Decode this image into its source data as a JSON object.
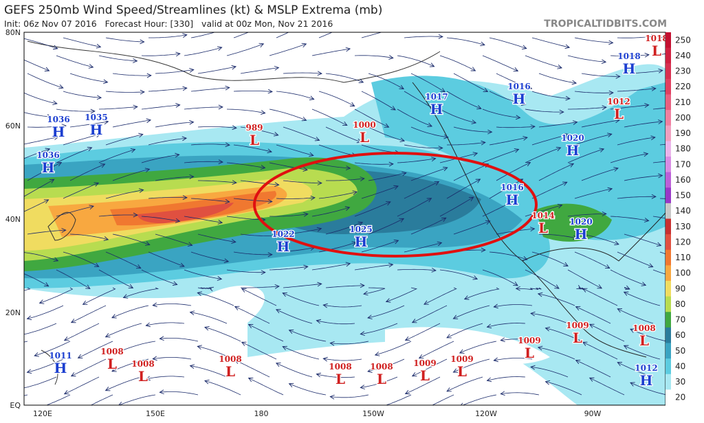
{
  "header": {
    "title": "GEFS 250mb Wind Speed/Streamlines (kt) & MSLP Extrema (mb)",
    "subtitle": "Init: 06z Nov 07 2016   Forecast Hour: [330]   valid at 00z Mon, Nov 21 2016",
    "source": "TROPICALTIDBITS.COM"
  },
  "lat_labels": [
    "80N",
    "60N",
    "40N",
    "20N",
    "EQ"
  ],
  "lon_labels": [
    "120E",
    "150E",
    "180",
    "150W",
    "120W",
    "90W"
  ],
  "pressure_centers": [
    {
      "type": "H",
      "value": "1036"
    },
    {
      "type": "H",
      "value": "1035"
    },
    {
      "type": "H",
      "value": "1036"
    },
    {
      "type": "L",
      "value": "989"
    },
    {
      "type": "L",
      "value": "1000"
    },
    {
      "type": "H",
      "value": "1017"
    },
    {
      "type": "H",
      "value": "1016"
    },
    {
      "type": "H",
      "value": "1018"
    },
    {
      "type": "L",
      "value": "1018"
    },
    {
      "type": "L",
      "value": "1012"
    },
    {
      "type": "H",
      "value": "1020"
    },
    {
      "type": "H",
      "value": "1016"
    },
    {
      "type": "L",
      "value": "1014"
    },
    {
      "type": "H",
      "value": "1020"
    },
    {
      "type": "H",
      "value": "1022"
    },
    {
      "type": "H",
      "value": "1025"
    },
    {
      "type": "H",
      "value": "1011"
    },
    {
      "type": "L",
      "value": "1008"
    },
    {
      "type": "L",
      "value": "1008"
    },
    {
      "type": "L",
      "value": "1008"
    },
    {
      "type": "L",
      "value": "1008"
    },
    {
      "type": "L",
      "value": "1008"
    },
    {
      "type": "L",
      "value": "1009"
    },
    {
      "type": "L",
      "value": "1009"
    },
    {
      "type": "L",
      "value": "1009"
    },
    {
      "type": "L",
      "value": "1009"
    },
    {
      "type": "L",
      "value": "1008"
    },
    {
      "type": "H",
      "value": "1012"
    }
  ],
  "colorbar": [
    {
      "label": "250",
      "color": "#c41030"
    },
    {
      "label": "240",
      "color": "#d02040"
    },
    {
      "label": "230",
      "color": "#d83050"
    },
    {
      "label": "220",
      "color": "#e04060"
    },
    {
      "label": "210",
      "color": "#e86080"
    },
    {
      "label": "200",
      "color": "#f080a0"
    },
    {
      "label": "190",
      "color": "#f0a0c0"
    },
    {
      "label": "180",
      "color": "#eab4ea"
    },
    {
      "label": "170",
      "color": "#d88ce4"
    },
    {
      "label": "160",
      "color": "#bc60d8"
    },
    {
      "label": "150",
      "color": "#9838c8"
    },
    {
      "label": "140",
      "color": "#c8c8c8"
    },
    {
      "label": "130",
      "color": "#c83030"
    },
    {
      "label": "120",
      "color": "#e05040"
    },
    {
      "label": "110",
      "color": "#f07830"
    },
    {
      "label": "100",
      "color": "#f8a840"
    },
    {
      "label": "90",
      "color": "#f0dc60"
    },
    {
      "label": "80",
      "color": "#b8dc50"
    },
    {
      "label": "70",
      "color": "#40a840"
    },
    {
      "label": "60",
      "color": "#2a7c9c"
    },
    {
      "label": "50",
      "color": "#3aa4c2"
    },
    {
      "label": "40",
      "color": "#5ccce0"
    },
    {
      "label": "30",
      "color": "#a8e8f2"
    },
    {
      "label": "20",
      "color": "#ffffff"
    }
  ]
}
